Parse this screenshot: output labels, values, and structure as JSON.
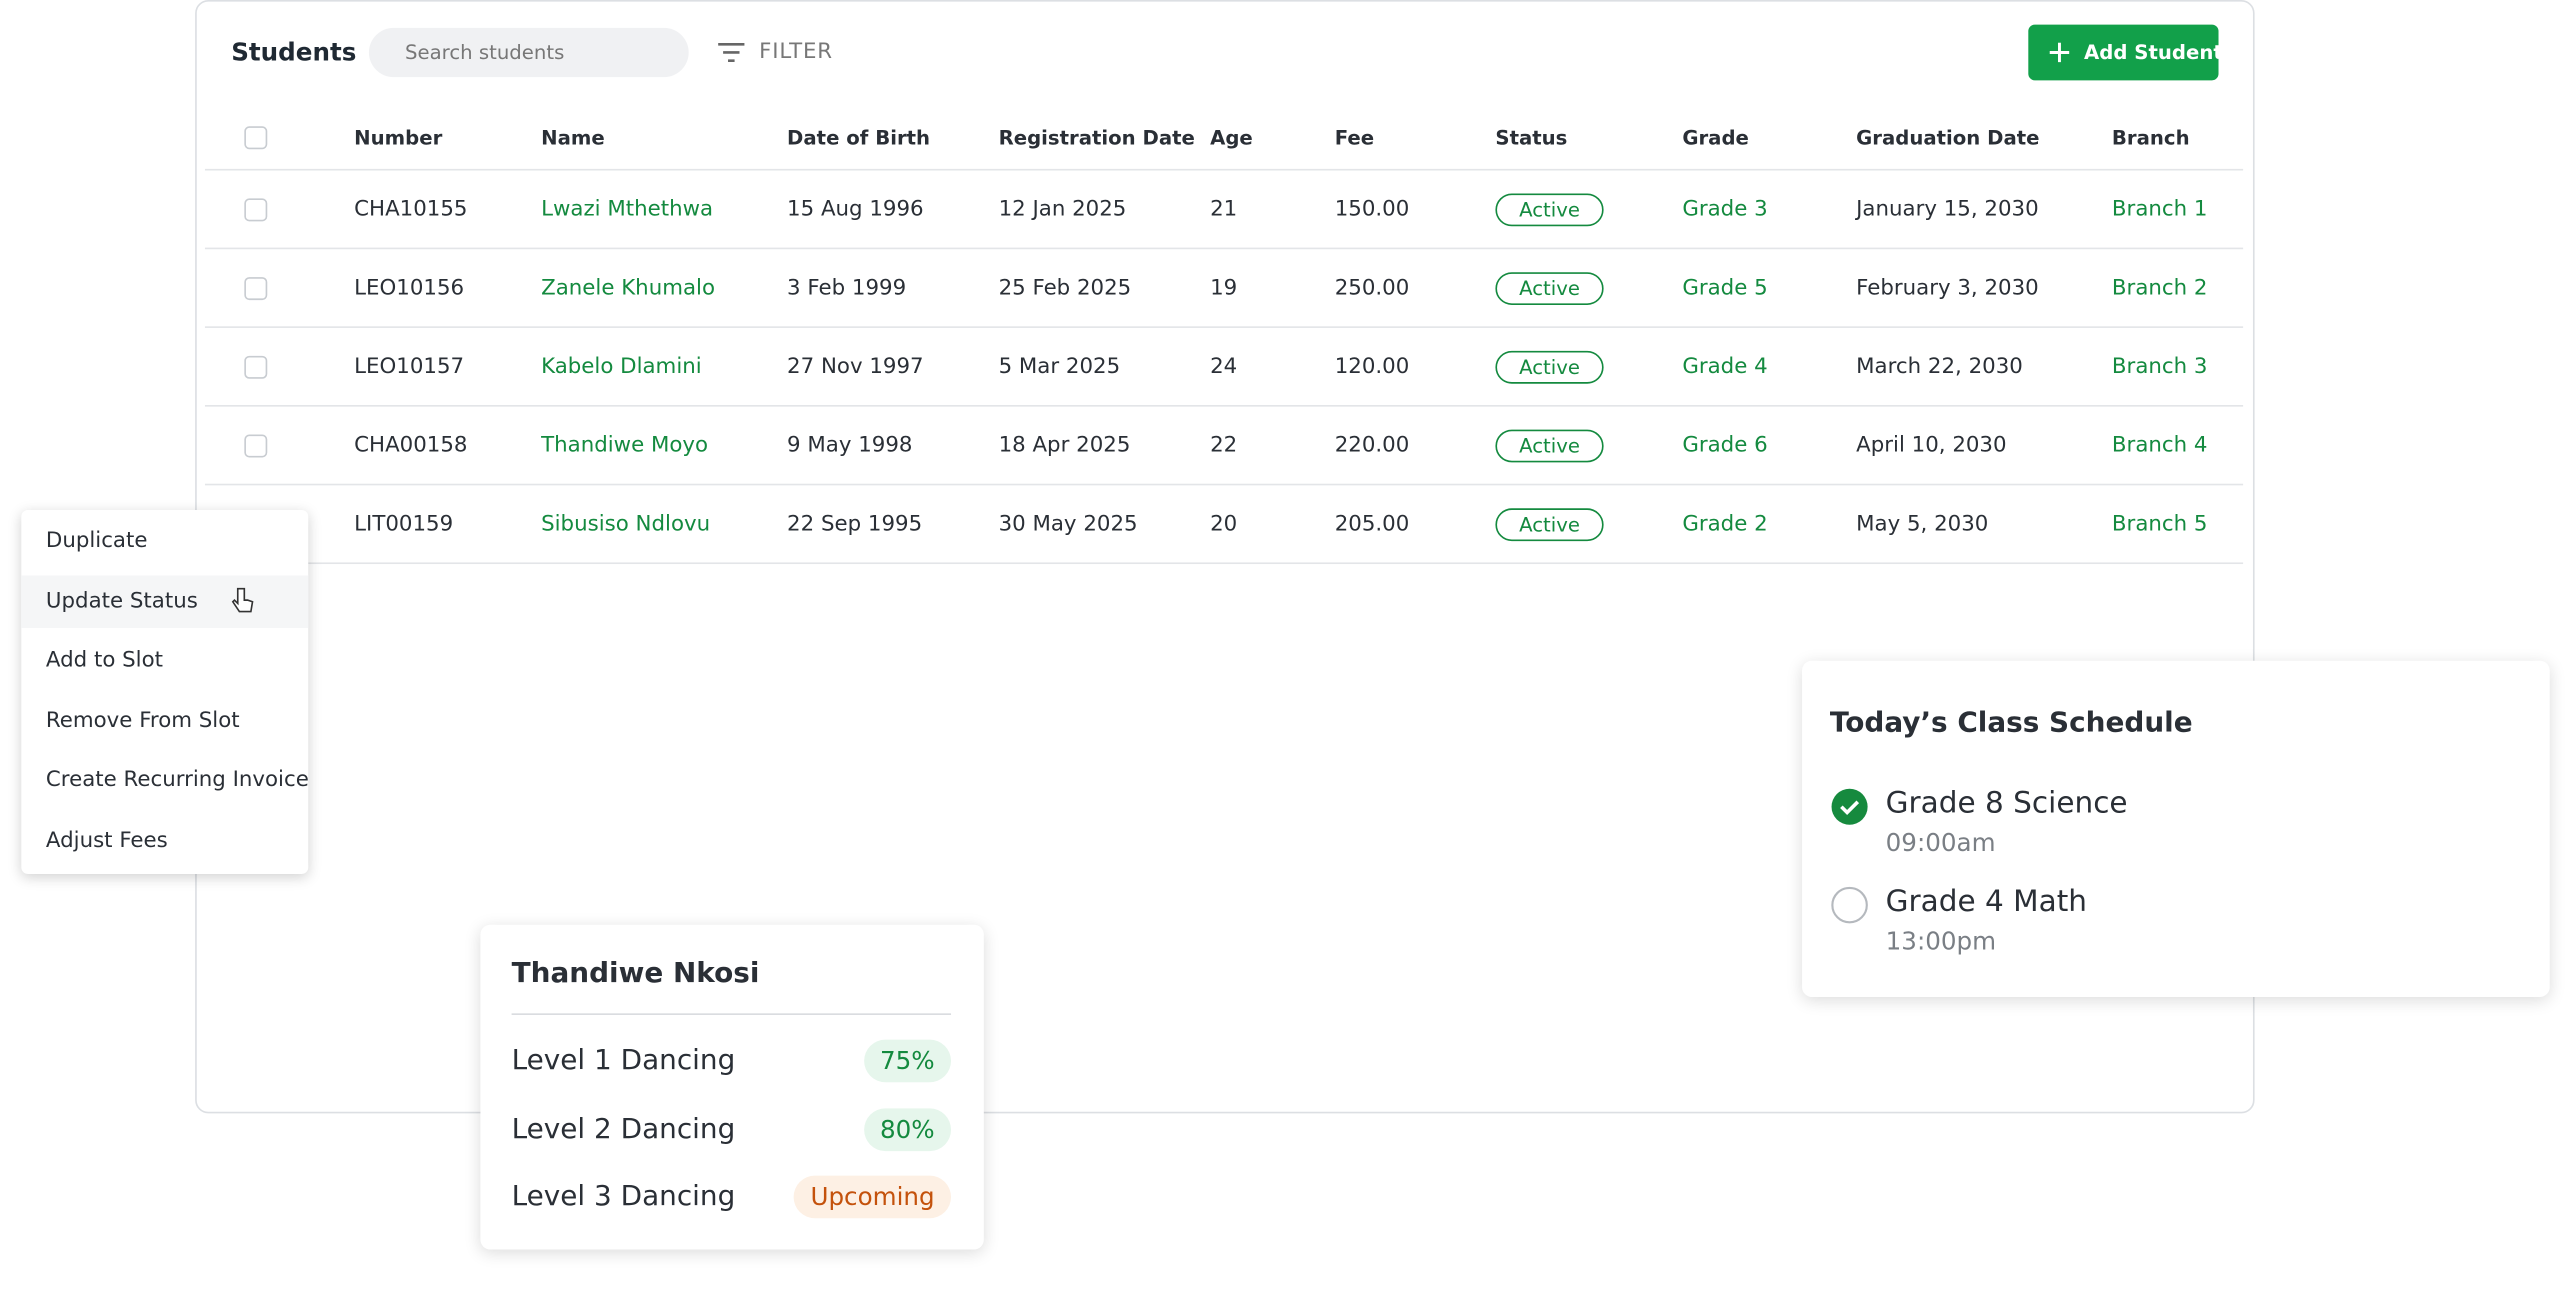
{
  "header": {
    "title": "Students",
    "search_placeholder": "Search students",
    "filter": "FILTER",
    "add_button": "Add Student"
  },
  "table": {
    "columns": [
      "Number",
      "Name",
      "Date of Birth",
      "Registration Date",
      "Age",
      "Fee",
      "Status",
      "Grade",
      "Graduation Date",
      "Branch"
    ],
    "rows": [
      [
        "CHA10155",
        "Lwazi Mthethwa",
        "15 Aug 1996",
        "12 Jan 2025",
        "21",
        "150.00",
        "Active",
        "Grade 3",
        "January 15, 2030",
        "Branch 1"
      ],
      [
        "LEO10156",
        "Zanele Khumalo",
        "3 Feb 1999",
        "25 Feb 2025",
        "19",
        "250.00",
        "Active",
        "Grade 5",
        "February 3, 2030",
        "Branch 2"
      ],
      [
        "LEO10157",
        "Kabelo Dlamini",
        "27 Nov 1997",
        "5 Mar 2025",
        "24",
        "120.00",
        "Active",
        "Grade 4",
        "March 22, 2030",
        "Branch 3"
      ],
      [
        "CHA00158",
        "Thandiwe Moyo",
        "9 May 1998",
        "18 Apr 2025",
        "22",
        "220.00",
        "Active",
        "Grade 6",
        "April 10, 2030",
        "Branch 4"
      ],
      [
        "LIT00159",
        "Sibusiso Ndlovu",
        "22 Sep 1995",
        "30 May 2025",
        "20",
        "205.00",
        "Active",
        "Grade 2",
        "May 5, 2030",
        "Branch 5"
      ]
    ]
  },
  "context_menu": {
    "items": [
      "Duplicate",
      "Update Status",
      "Add to Slot",
      "Remove From Slot",
      "Create Recurring Invoice",
      "Adjust Fees"
    ]
  },
  "progress_card": {
    "title": "Thandiwe Nkosi",
    "items": [
      {
        "label": "Level 1 Dancing",
        "badge": "75%"
      },
      {
        "label": "Level 2 Dancing",
        "badge": "80%"
      },
      {
        "label": "Level 3 Dancing",
        "badge": "Upcoming"
      }
    ]
  },
  "schedule_card": {
    "title": "Today’s Class Schedule",
    "items": [
      {
        "name": "Grade 8 Science",
        "time": "09:00am"
      },
      {
        "name": "Grade 4 Math",
        "time": "13:00pm"
      }
    ]
  }
}
